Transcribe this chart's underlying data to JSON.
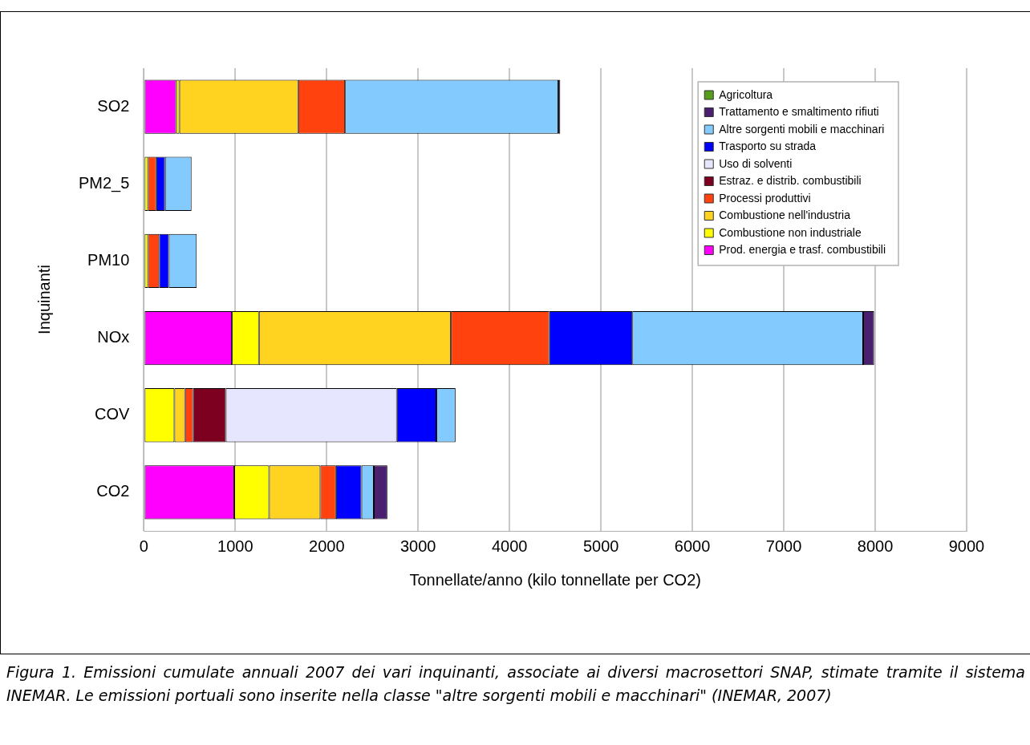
{
  "chart_data": {
    "type": "bar",
    "orientation": "horizontal",
    "stacked": true,
    "categories": [
      "SO2",
      "PM2_5",
      "PM10",
      "NOx",
      "COV",
      "CO2"
    ],
    "series": [
      {
        "name": "Prod. energia e trasf. combustibili",
        "color": "#ff00ff",
        "values": [
          353,
          0,
          0,
          963,
          0,
          988
        ]
      },
      {
        "name": "Combustione non industriale",
        "color": "#ffff00",
        "values": [
          35,
          45,
          45,
          295,
          334,
          382
        ]
      },
      {
        "name": "Combustione nell'industria",
        "color": "#ffd320",
        "values": [
          1300,
          0,
          0,
          2101,
          116,
          561
        ]
      },
      {
        "name": "Processi produttivi",
        "color": "#ff420e",
        "values": [
          513,
          90,
          122,
          1075,
          87,
          170
        ]
      },
      {
        "name": "Estraz. e distrib. combustibili",
        "color": "#7e0021",
        "values": [
          0,
          0,
          0,
          0,
          359,
          0
        ]
      },
      {
        "name": "Uso di solventi",
        "color": "#e6e6ff",
        "values": [
          0,
          0,
          0,
          0,
          1871,
          0
        ]
      },
      {
        "name": "Trasporto su strada",
        "color": "#0000ff",
        "values": [
          0,
          96,
          106,
          909,
          433,
          279
        ]
      },
      {
        "name": "Altre sorgenti mobili e macchinari",
        "color": "#83caff",
        "values": [
          2333,
          290,
          305,
          2525,
          209,
          135
        ]
      },
      {
        "name": "Trattamento e smaltimento rifiuti",
        "color": "#4b1f6f",
        "values": [
          20,
          0,
          0,
          120,
          0,
          148
        ]
      },
      {
        "name": "Agricoltura",
        "color": "#579d1c",
        "values": [
          0,
          0,
          0,
          0,
          0,
          0
        ]
      }
    ],
    "xlim": [
      0,
      9000
    ],
    "xticks": [
      0,
      1000,
      2000,
      3000,
      4000,
      5000,
      6000,
      7000,
      8000,
      9000
    ],
    "xlabel": "Tonnellate/anno (kilo tonnellate per CO2)",
    "ylabel": "Inquinanti",
    "grid": "x",
    "legend": "top right",
    "annotations": [
      "Figura 1. Emissioni cumulate annuali 2007 dei vari inquinanti, associate ai diversi macrosettori SNAP, stimate tramite il sistema INEMAR. Le emissioni portuali sono inserite nella classe \"altre sorgenti mobili e macchinari\" (INEMAR, 2007)"
    ]
  }
}
